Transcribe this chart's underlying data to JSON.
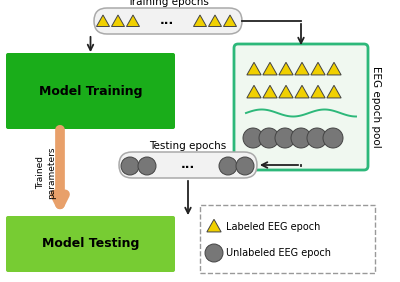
{
  "bg_color": "#ffffff",
  "green_dark": "#1aad1a",
  "green_light": "#77cc33",
  "green_pool_border": "#2db87a",
  "green_pool_bg": "#f0f8f0",
  "gray_circle": "#777777",
  "yellow_tri": "#f0d000",
  "orange_arrow_color": "#e8a06a",
  "pill_fill": "#f2f2f2",
  "pill_stroke": "#aaaaaa",
  "legend_dash_color": "#999999",
  "arrow_color": "#222222",
  "model_training_label": "Model Training",
  "model_testing_label": "Model Testing",
  "training_epochs_label": "Training epochs",
  "testing_epochs_label": "Testing epochs",
  "trained_params_label": "Trained\nparameters",
  "eeg_pool_label": "EEG epoch pool",
  "legend_labeled": "Labeled EEG epoch",
  "legend_unlabeled": "Unlabeled EEG epoch"
}
